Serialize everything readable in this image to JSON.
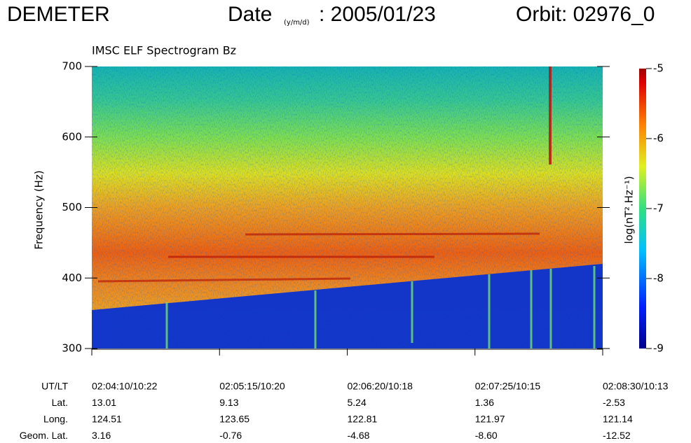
{
  "header": {
    "mission": "DEMETER",
    "date_label": "Date",
    "date_unit": "(y/m/d)",
    "date": ": 2005/01/23",
    "orbit": "Orbit: 02976_0"
  },
  "chart_data": {
    "type": "spectrogram",
    "title": "IMSC ELF Spectrogram Bz",
    "y_label": "Frequency (Hz)",
    "ylim": [
      300,
      700
    ],
    "yticks": [
      300,
      400,
      500,
      600,
      700
    ],
    "colorbar": {
      "label": "log(nT².Hz⁻¹)",
      "clim": [
        -9,
        -5
      ],
      "ticks": [
        -9,
        -8,
        -7,
        -6,
        -5
      ]
    },
    "x_table": {
      "rows": [
        {
          "label": "UT/LT",
          "values": [
            "02:04:10/10:22",
            "02:05:15/10:20",
            "02:06:20/10:18",
            "02:07:25/10:15",
            "02:08:30/10:13"
          ]
        },
        {
          "label": "Lat.",
          "values": [
            "13.01",
            "9.13",
            "5.24",
            "1.36",
            "-2.53"
          ]
        },
        {
          "label": "Long.",
          "values": [
            "124.51",
            "123.65",
            "122.81",
            "121.97",
            "121.14"
          ]
        },
        {
          "label": "Geom. Lat.",
          "values": [
            "3.16",
            "-0.76",
            "-4.68",
            "-8.60",
            "-12.52"
          ]
        }
      ]
    }
  }
}
